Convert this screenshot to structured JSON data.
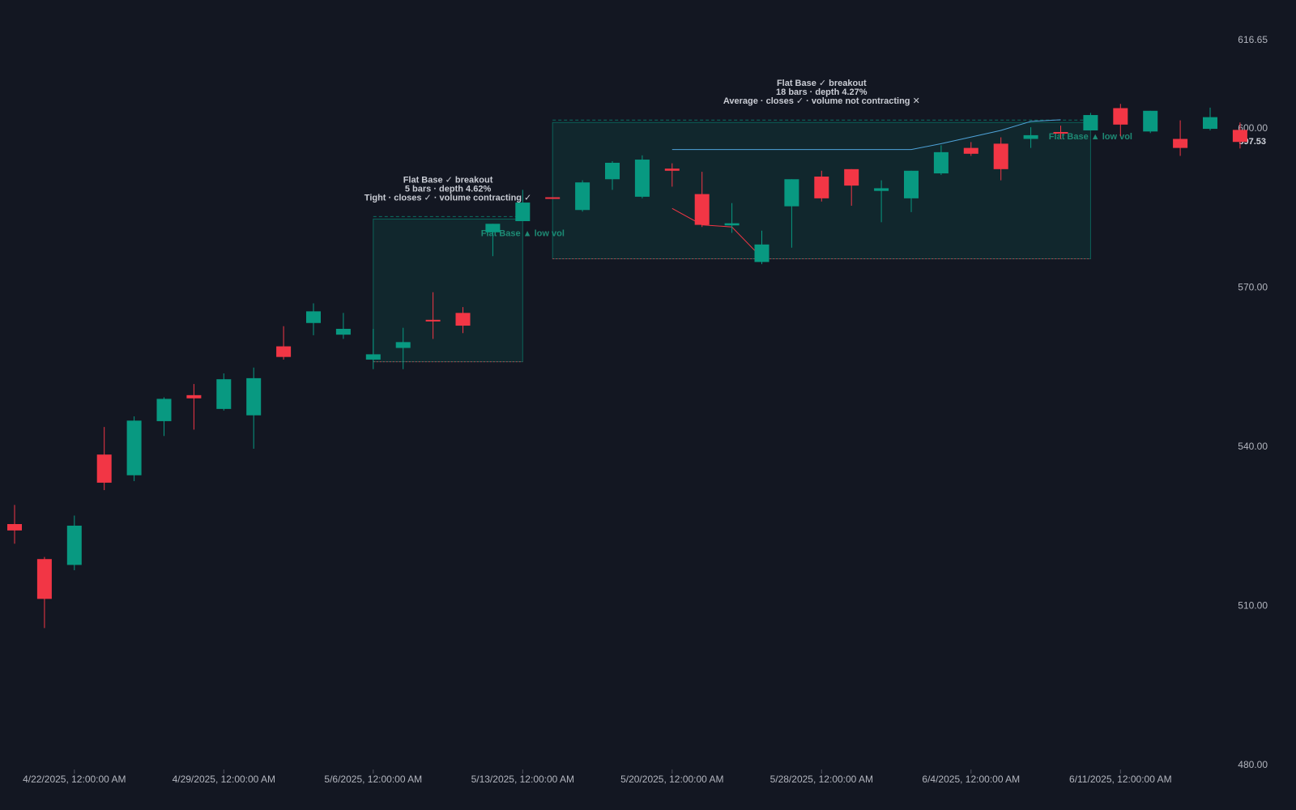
{
  "chart_data": {
    "type": "candlestick",
    "categories": [
      null,
      null,
      "4/22/2025, 12:00:00 AM",
      null,
      null,
      null,
      null,
      "4/29/2025, 12:00:00 AM",
      null,
      null,
      null,
      null,
      "5/6/2025, 12:00:00 AM",
      null,
      null,
      null,
      null,
      "5/13/2025, 12:00:00 AM",
      null,
      null,
      null,
      null,
      "5/20/2025, 12:00:00 AM",
      null,
      null,
      null,
      null,
      "5/28/2025, 12:00:00 AM",
      null,
      null,
      null,
      null,
      "6/4/2025, 12:00:00 AM",
      null,
      null,
      null,
      null,
      "6/11/2025, 12:00:00 AM",
      null,
      null,
      null,
      null
    ],
    "open": [
      525.5,
      518.9,
      517.8,
      538.6,
      534.7,
      544.9,
      549.8,
      547.2,
      546.0,
      559.0,
      563.4,
      561.2,
      556.5,
      558.7,
      564.0,
      565.3,
      580.5,
      582.6,
      587.1,
      584.7,
      590.5,
      587.2,
      592.5,
      587.7,
      581.8,
      574.9,
      585.4,
      591.0,
      592.4,
      588.3,
      586.9,
      591.6,
      596.4,
      597.2,
      598.1,
      599.4,
      599.7,
      603.9,
      599.5,
      598.1,
      600.0,
      599.8
    ],
    "high": [
      529.1,
      519.3,
      527.1,
      543.8,
      545.8,
      549.4,
      551.9,
      553.9,
      555.0,
      562.8,
      567.1,
      565.3,
      562.3,
      562.5,
      569.2,
      566.4,
      582.1,
      588.5,
      587.1,
      590.3,
      593.9,
      595.0,
      593.5,
      591.9,
      586.0,
      580.8,
      590.5,
      592.1,
      592.4,
      590.3,
      592.1,
      596.9,
      597.5,
      598.4,
      600.3,
      600.6,
      603.0,
      604.7,
      603.4,
      601.6,
      604.0,
      601.2
    ],
    "low": [
      521.8,
      505.9,
      516.8,
      531.9,
      533.6,
      542.1,
      543.3,
      546.9,
      539.7,
      556.5,
      561.1,
      560.4,
      554.7,
      554.7,
      560.4,
      561.5,
      576.0,
      582.6,
      586.8,
      584.4,
      588.5,
      586.9,
      589.1,
      581.5,
      580.4,
      574.5,
      577.6,
      586.3,
      585.5,
      582.4,
      584.3,
      591.3,
      594.9,
      590.3,
      596.4,
      598.1,
      599.7,
      598.6,
      599.2,
      594.9,
      599.7,
      596.3
    ],
    "close": [
      524.3,
      511.4,
      525.2,
      533.3,
      545.0,
      549.1,
      549.2,
      552.8,
      553.0,
      557.0,
      565.6,
      562.3,
      557.5,
      559.8,
      563.7,
      562.9,
      582.1,
      586.1,
      586.8,
      589.9,
      593.6,
      594.2,
      592.1,
      581.9,
      582.2,
      578.2,
      590.5,
      586.9,
      589.3,
      588.8,
      592.1,
      595.6,
      595.3,
      592.4,
      598.8,
      599.2,
      602.6,
      600.8,
      603.4,
      596.4,
      602.2,
      597.53
    ],
    "up_color": "#089981",
    "down_color": "#f23645",
    "ylim": [
      480,
      616.65
    ],
    "yticks": [
      {
        "value": 480,
        "label": "480.00"
      },
      {
        "value": 510,
        "label": "510.00"
      },
      {
        "value": 540,
        "label": "540.00"
      },
      {
        "value": 570,
        "label": "570.00"
      },
      {
        "value": 600,
        "label": "600.00"
      },
      {
        "value": 616.65,
        "label": "616.65"
      }
    ],
    "last_price": {
      "value": 597.53,
      "label": "597.53"
    },
    "bases": [
      {
        "start": 12,
        "end": 17,
        "top": 583.0,
        "bottom": 556.1,
        "lines": [
          "Flat Base ✓ breakout",
          "5 bars · depth 4.62%",
          "Tight · closes ✓ · volume contracting ✓"
        ],
        "marker": "Flat Base ▲ low vol"
      },
      {
        "start": 18,
        "end": 36,
        "top": 601.2,
        "bottom": 575.5,
        "lines": [
          "Flat Base ✓ breakout",
          "18 bars · depth 4.27%",
          "Average · closes ✓ · volume not contracting ✕"
        ],
        "marker": "Flat Base ▲ low vol"
      }
    ],
    "lines": [
      {
        "color": "#4fa3d9",
        "x": [
          22,
          30,
          31,
          33,
          34,
          35
        ],
        "values": [
          596.1,
          596.1,
          597.2,
          599.7,
          601.4,
          601.7
        ]
      },
      {
        "color": "#f23645",
        "x": [
          22,
          23,
          24,
          25
        ],
        "values": [
          585.0,
          581.9,
          581.5,
          575.7
        ]
      }
    ]
  }
}
